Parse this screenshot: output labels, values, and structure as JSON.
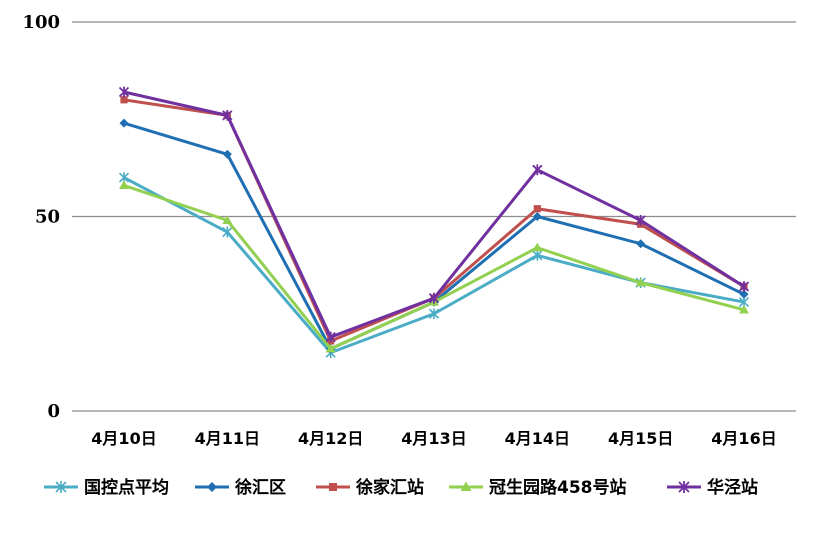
{
  "chart_data": {
    "type": "line",
    "title": "",
    "xlabel": "",
    "ylabel": "",
    "ylim": [
      0,
      100
    ],
    "yticks": [
      0,
      50,
      100
    ],
    "grid": "horizontal-major",
    "legend_position": "bottom",
    "categories": [
      "4月10日",
      "4月11日",
      "4月12日",
      "4月13日",
      "4月14日",
      "4月15日",
      "4月16日"
    ],
    "series": [
      {
        "name": "国控点平均",
        "color": "#4BACC6",
        "marker": "asterisk",
        "values": [
          60,
          46,
          15,
          25,
          40,
          33,
          28
        ]
      },
      {
        "name": "徐汇区",
        "color": "#1F6FB2",
        "marker": "diamond",
        "values": [
          74,
          66,
          16,
          28,
          50,
          43,
          30
        ]
      },
      {
        "name": "徐家汇站",
        "color": "#C0504D",
        "marker": "square",
        "values": [
          80,
          76,
          18,
          29,
          52,
          48,
          32
        ]
      },
      {
        "name": "冠生园路458号站",
        "color": "#92D050",
        "marker": "triangle",
        "values": [
          58,
          49,
          16,
          28,
          42,
          33,
          26
        ]
      },
      {
        "name": "华泾站",
        "color": "#7030A0",
        "marker": "star",
        "values": [
          82,
          76,
          19,
          29,
          62,
          49,
          32
        ]
      }
    ]
  }
}
